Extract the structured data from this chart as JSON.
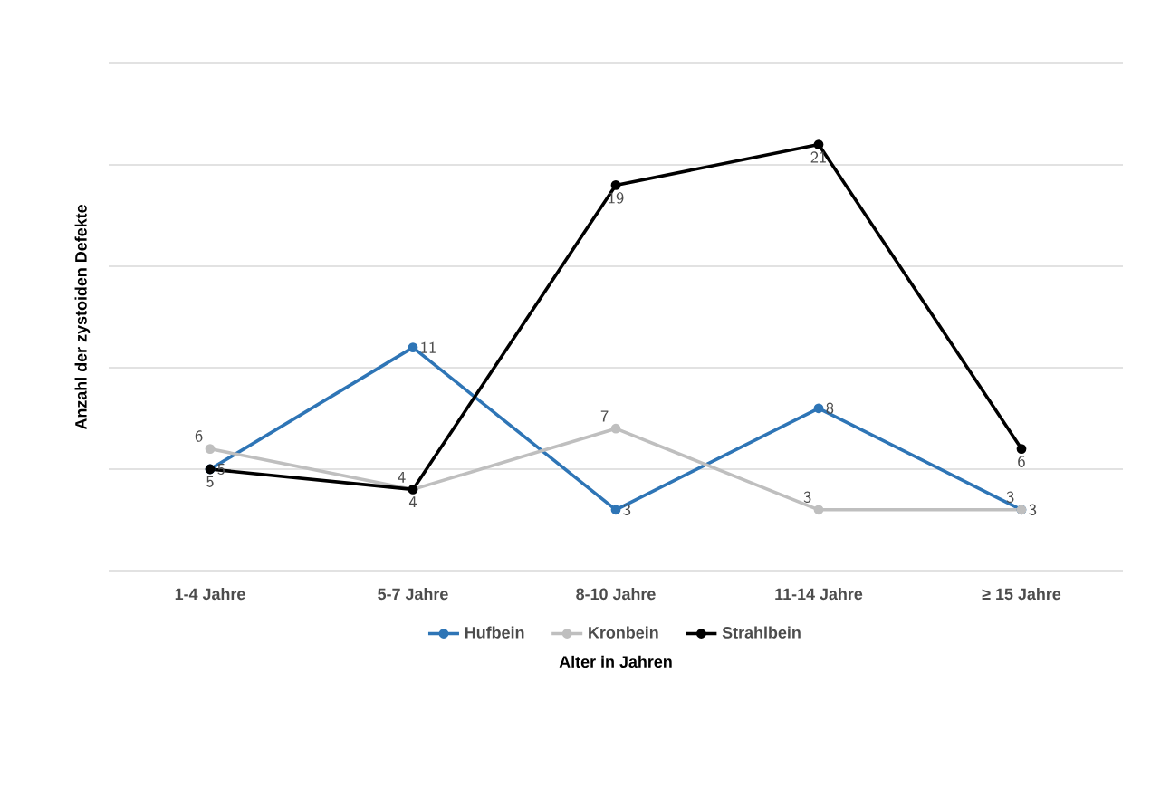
{
  "chart_data": {
    "type": "line",
    "ylabel": "Anzahl der zystoiden Defekte",
    "xlabel": "Alter in Jahren",
    "categories": [
      "1-4 Jahre",
      "5-7 Jahre",
      "8-10 Jahre",
      "11-14 Jahre",
      "≥ 15 Jahre"
    ],
    "series": [
      {
        "name": "Hufbein",
        "color": "#2e75b6",
        "values": [
          5,
          11,
          3,
          8,
          3
        ]
      },
      {
        "name": "Kronbein",
        "color": "#bfbfbf",
        "values": [
          6,
          4,
          7,
          3,
          3
        ]
      },
      {
        "name": "Strahlbein",
        "color": "#000000",
        "values": [
          5,
          4,
          19,
          21,
          6
        ]
      }
    ],
    "ylim": [
      0,
      25
    ],
    "yticks": [
      {
        "value": 0,
        "label": null
      },
      {
        "value": 5,
        "label": null
      },
      {
        "value": 10,
        "label": null
      },
      {
        "value": 15,
        "label": null
      },
      {
        "value": 20,
        "label": null
      },
      {
        "value": 25,
        "label": null
      }
    ],
    "tick_labels": "x",
    "grid": "y",
    "legend": "bottom",
    "marker": "circle",
    "line_style": "solid",
    "data_labels": true
  }
}
